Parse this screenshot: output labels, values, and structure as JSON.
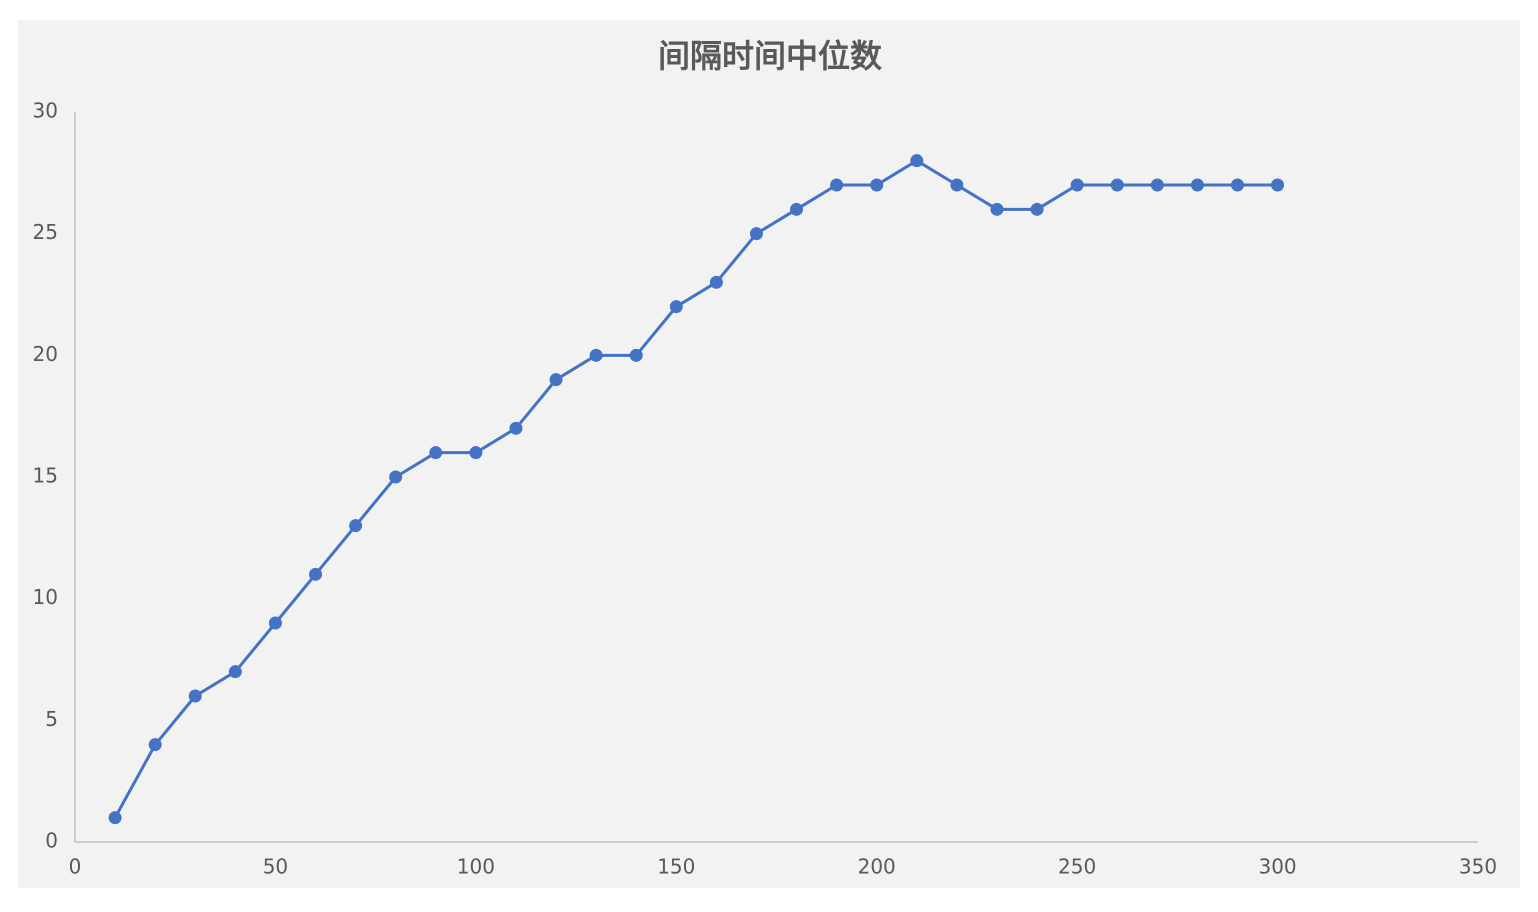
{
  "chart_data": {
    "type": "line",
    "title": "间隔时间中位数",
    "x": [
      10,
      20,
      30,
      40,
      50,
      60,
      70,
      80,
      90,
      100,
      110,
      120,
      130,
      140,
      150,
      160,
      170,
      180,
      190,
      200,
      210,
      220,
      230,
      240,
      250,
      260,
      270,
      280,
      290,
      300
    ],
    "values": [
      1,
      4,
      6,
      7,
      9,
      11,
      13,
      15,
      16,
      16,
      17,
      19,
      20,
      20,
      22,
      23,
      25,
      26,
      27,
      27,
      28,
      27,
      26,
      26,
      27,
      27,
      27,
      27,
      27,
      27
    ],
    "color": "#4472c4",
    "xlim": [
      0,
      350
    ],
    "xticks": [
      0,
      50,
      100,
      150,
      200,
      250,
      300,
      350
    ],
    "ylim": [
      0,
      30
    ],
    "yticks": [
      0,
      5,
      10,
      15,
      20,
      25,
      30
    ],
    "grid": false
  }
}
